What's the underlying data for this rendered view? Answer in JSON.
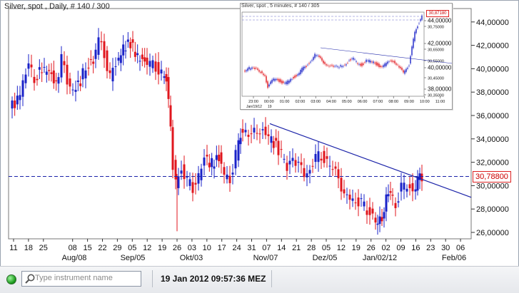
{
  "main_chart": {
    "title": "Silver, spot , Daily, # 140 / 300",
    "current_price": "30,78800",
    "y_ticks": [
      "44,00000",
      "42,00000",
      "40,00000",
      "38,00000",
      "36,00000",
      "34,00000",
      "32,00000",
      "30,00000",
      "28,00000",
      "26,00000"
    ],
    "x_days": [
      "11",
      "18",
      "25",
      "08",
      "15",
      "22",
      "29",
      "05",
      "12",
      "19",
      "26",
      "03",
      "10",
      "17",
      "24",
      "31",
      "07",
      "14",
      "21",
      "28",
      "05",
      "12",
      "19",
      "26",
      "02",
      "09",
      "16",
      "23",
      "30",
      "06"
    ],
    "x_months": [
      "Aug/08",
      "Sep/05",
      "Okt/03",
      "Nov/07",
      "Dez/05",
      "Jan/02/12",
      "Feb/06"
    ],
    "colors": {
      "up": "#1a22c8",
      "down": "#e0161d",
      "trendline": "#1a22a8",
      "price_line": "#1a22a8"
    }
  },
  "inset_chart": {
    "title": "Silver, spot , 5 minutes, # 140 / 305",
    "current_price": "30,87180",
    "y_ticks": [
      "44,00000",
      "30,75000",
      "42,00000",
      "30,65000",
      "30,55000",
      "40,00000",
      "30,45000",
      "38,00000",
      "30,35000"
    ],
    "x_times": [
      "23:00",
      "00:00",
      "01:00",
      "02:00",
      "03:00",
      "04:00",
      "05:00",
      "06:00",
      "07:00",
      "08:00",
      "09:00",
      "10:00",
      "11:00"
    ],
    "x_sub": [
      "Jan/19/12",
      "19"
    ]
  },
  "statusbar": {
    "search_placeholder": "Type instrument name",
    "timestamp": "19 Jan 2012 09:57:36 MEZ"
  }
}
